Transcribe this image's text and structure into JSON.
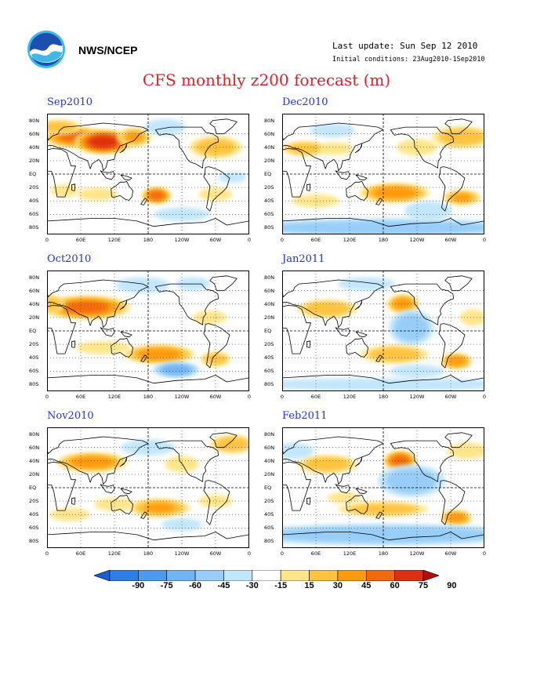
{
  "header": {
    "org": "NWS/NCEP",
    "last_update": "Last update: Sun Sep 12 2010",
    "initial_conditions": "Initial conditions: 23Aug2010-1Sep2010",
    "title": "CFS monthly z200 forecast (m)",
    "logo_icon": "noaa-logo-icon"
  },
  "axes": {
    "lat_labels": [
      "80N",
      "60N",
      "40N",
      "20N",
      "EQ",
      "20S",
      "40S",
      "60S",
      "80S"
    ],
    "lon_labels": [
      "0",
      "60E",
      "120E",
      "180",
      "120W",
      "60W",
      "0"
    ]
  },
  "colorbar": {
    "labels": [
      "-90",
      "-75",
      "-60",
      "-45",
      "-30",
      "-15",
      "15",
      "30",
      "45",
      "60",
      "75",
      "90"
    ],
    "colors": [
      "#1a5fd0",
      "#2c7fe8",
      "#4a9af0",
      "#6fb4f5",
      "#97cdf8",
      "#c2e6fb",
      "#ffffff",
      "#ffe58a",
      "#ffc340",
      "#ff9a10",
      "#f26a10",
      "#dd3010",
      "#b80c06"
    ]
  },
  "panels": [
    {
      "title": "Sep2010",
      "blobs": [
        {
          "lon": 50,
          "lat": 55,
          "sx": 40,
          "sy": 10,
          "v": 70
        },
        {
          "lon": 100,
          "lat": 48,
          "sx": 35,
          "sy": 12,
          "v": 90
        },
        {
          "lon": 155,
          "lat": 55,
          "sx": 22,
          "sy": 10,
          "v": 50
        },
        {
          "lon": 210,
          "lat": 70,
          "sx": 30,
          "sy": 10,
          "v": -30
        },
        {
          "lon": 300,
          "lat": 40,
          "sx": 35,
          "sy": 12,
          "v": 45
        },
        {
          "lon": 20,
          "lat": 70,
          "sx": 30,
          "sy": 8,
          "v": 45
        },
        {
          "lon": 195,
          "lat": -32,
          "sx": 18,
          "sy": 8,
          "v": 75
        },
        {
          "lon": 30,
          "lat": -25,
          "sx": 20,
          "sy": 8,
          "v": 30
        },
        {
          "lon": 90,
          "lat": -30,
          "sx": 30,
          "sy": 8,
          "v": 30
        },
        {
          "lon": 300,
          "lat": -30,
          "sx": 25,
          "sy": 8,
          "v": 30
        },
        {
          "lon": 240,
          "lat": -60,
          "sx": 50,
          "sy": 10,
          "v": -20
        },
        {
          "lon": 330,
          "lat": -5,
          "sx": 25,
          "sy": 8,
          "v": -20
        }
      ]
    },
    {
      "title": "Dec2010",
      "blobs": [
        {
          "lon": 40,
          "lat": 38,
          "sx": 30,
          "sy": 8,
          "v": 45
        },
        {
          "lon": 95,
          "lat": 38,
          "sx": 25,
          "sy": 8,
          "v": 30
        },
        {
          "lon": 200,
          "lat": -28,
          "sx": 45,
          "sy": 10,
          "v": 60
        },
        {
          "lon": 320,
          "lat": -35,
          "sx": 25,
          "sy": 8,
          "v": 50
        },
        {
          "lon": 180,
          "lat": -80,
          "sx": 200,
          "sy": 10,
          "v": -45
        },
        {
          "lon": 260,
          "lat": -55,
          "sx": 35,
          "sy": 12,
          "v": -30
        },
        {
          "lon": 320,
          "lat": 55,
          "sx": 40,
          "sy": 12,
          "v": 45
        },
        {
          "lon": 90,
          "lat": 65,
          "sx": 40,
          "sy": 10,
          "v": -20
        },
        {
          "lon": 240,
          "lat": 40,
          "sx": 30,
          "sy": 10,
          "v": 30
        },
        {
          "lon": 60,
          "lat": -40,
          "sx": 35,
          "sy": 8,
          "v": 30
        }
      ]
    },
    {
      "title": "Oct2010",
      "blobs": [
        {
          "lon": 70,
          "lat": 35,
          "sx": 55,
          "sy": 12,
          "v": 70
        },
        {
          "lon": 5,
          "lat": 40,
          "sx": 20,
          "sy": 10,
          "v": 45
        },
        {
          "lon": 170,
          "lat": 68,
          "sx": 40,
          "sy": 10,
          "v": -30
        },
        {
          "lon": 260,
          "lat": 70,
          "sx": 30,
          "sy": 10,
          "v": -20
        },
        {
          "lon": 200,
          "lat": -35,
          "sx": 45,
          "sy": 10,
          "v": 60
        },
        {
          "lon": 230,
          "lat": -58,
          "sx": 30,
          "sy": 8,
          "v": -60
        },
        {
          "lon": 300,
          "lat": -42,
          "sx": 20,
          "sy": 8,
          "v": 45
        },
        {
          "lon": 100,
          "lat": -25,
          "sx": 40,
          "sy": 8,
          "v": 30
        },
        {
          "lon": 290,
          "lat": 20,
          "sx": 30,
          "sy": 10,
          "v": 20
        }
      ]
    },
    {
      "title": "Jan2011",
      "blobs": [
        {
          "lon": 80,
          "lat": 33,
          "sx": 40,
          "sy": 10,
          "v": 45
        },
        {
          "lon": 215,
          "lat": 40,
          "sx": 20,
          "sy": 10,
          "v": 60
        },
        {
          "lon": 230,
          "lat": 5,
          "sx": 30,
          "sy": 20,
          "v": -45
        },
        {
          "lon": 150,
          "lat": 70,
          "sx": 50,
          "sy": 10,
          "v": -20
        },
        {
          "lon": 200,
          "lat": -35,
          "sx": 45,
          "sy": 10,
          "v": 45
        },
        {
          "lon": 240,
          "lat": -60,
          "sx": 40,
          "sy": 8,
          "v": -30
        },
        {
          "lon": 310,
          "lat": -45,
          "sx": 20,
          "sy": 8,
          "v": 60
        },
        {
          "lon": 340,
          "lat": 20,
          "sx": 20,
          "sy": 10,
          "v": 30
        },
        {
          "lon": 180,
          "lat": -80,
          "sx": 200,
          "sy": 8,
          "v": -30
        }
      ]
    },
    {
      "title": "Nov2010",
      "blobs": [
        {
          "lon": 80,
          "lat": 38,
          "sx": 45,
          "sy": 10,
          "v": 60
        },
        {
          "lon": 330,
          "lat": 65,
          "sx": 30,
          "sy": 10,
          "v": 45
        },
        {
          "lon": 180,
          "lat": 60,
          "sx": 40,
          "sy": 10,
          "v": -30
        },
        {
          "lon": 240,
          "lat": 35,
          "sx": 25,
          "sy": 10,
          "v": 30
        },
        {
          "lon": 200,
          "lat": -30,
          "sx": 40,
          "sy": 10,
          "v": 50
        },
        {
          "lon": 240,
          "lat": -55,
          "sx": 30,
          "sy": 8,
          "v": -30
        },
        {
          "lon": 120,
          "lat": -25,
          "sx": 30,
          "sy": 8,
          "v": 30
        },
        {
          "lon": 300,
          "lat": -20,
          "sx": 25,
          "sy": 8,
          "v": 30
        },
        {
          "lon": 40,
          "lat": -40,
          "sx": 30,
          "sy": 8,
          "v": 30
        }
      ]
    },
    {
      "title": "Feb2011",
      "blobs": [
        {
          "lon": 210,
          "lat": 40,
          "sx": 20,
          "sy": 10,
          "v": 75
        },
        {
          "lon": 230,
          "lat": 10,
          "sx": 45,
          "sy": 18,
          "v": -45
        },
        {
          "lon": 80,
          "lat": 35,
          "sx": 40,
          "sy": 10,
          "v": 45
        },
        {
          "lon": 20,
          "lat": 55,
          "sx": 30,
          "sy": 10,
          "v": -30
        },
        {
          "lon": 330,
          "lat": 55,
          "sx": 30,
          "sy": 10,
          "v": 30
        },
        {
          "lon": 180,
          "lat": -32,
          "sx": 60,
          "sy": 8,
          "v": 45
        },
        {
          "lon": 310,
          "lat": -45,
          "sx": 20,
          "sy": 8,
          "v": 60
        },
        {
          "lon": 180,
          "lat": -70,
          "sx": 200,
          "sy": 12,
          "v": -45
        },
        {
          "lon": 110,
          "lat": -15,
          "sx": 30,
          "sy": 8,
          "v": 20
        }
      ]
    }
  ]
}
